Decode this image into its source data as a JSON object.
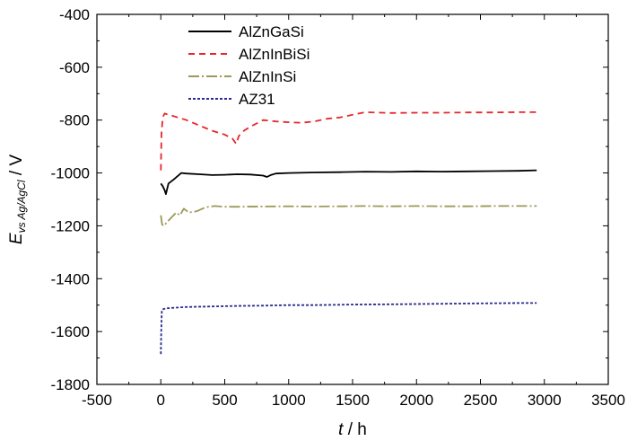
{
  "chart_data": {
    "type": "line",
    "title": "",
    "xlabel": {
      "var": "t",
      "unit": " / h"
    },
    "ylabel": {
      "var": "E",
      "sub": "vs Ag/AgCl",
      "unit": " / V"
    },
    "xlim": [
      -500,
      3500
    ],
    "ylim": [
      -1800,
      -400
    ],
    "xticks": [
      -500,
      0,
      500,
      1000,
      1500,
      2000,
      2500,
      3000,
      3500
    ],
    "yticks": [
      -400,
      -600,
      -800,
      -1000,
      -1200,
      -1400,
      -1600,
      -1800
    ],
    "legend_position": "top-center",
    "series": [
      {
        "name": "AlZnGaSi",
        "color": "#000000",
        "dash": "",
        "x": [
          0,
          15,
          30,
          40,
          60,
          100,
          160,
          200,
          300,
          400,
          500,
          600,
          700,
          800,
          830,
          860,
          900,
          1000,
          1200,
          1400,
          1600,
          1800,
          2000,
          2200,
          2400,
          2600,
          2800,
          2940
        ],
        "y": [
          -1040,
          -1050,
          -1065,
          -1080,
          -1040,
          -1025,
          -1000,
          -1002,
          -1005,
          -1008,
          -1007,
          -1005,
          -1006,
          -1010,
          -1015,
          -1008,
          -1002,
          -1000,
          -998,
          -997,
          -995,
          -996,
          -994,
          -995,
          -994,
          -993,
          -992,
          -990
        ]
      },
      {
        "name": "AlZnInBiSi",
        "color": "#e8262b",
        "dash": "7,5",
        "x": [
          0,
          5,
          15,
          30,
          60,
          100,
          200,
          300,
          400,
          500,
          560,
          590,
          610,
          650,
          700,
          800,
          900,
          1000,
          1100,
          1200,
          1300,
          1400,
          1500,
          1600,
          1800,
          2000,
          2200,
          2400,
          2600,
          2800,
          2940
        ],
        "y": [
          -990,
          -850,
          -790,
          -775,
          -780,
          -785,
          -800,
          -820,
          -840,
          -855,
          -870,
          -890,
          -860,
          -840,
          -825,
          -800,
          -805,
          -808,
          -810,
          -805,
          -795,
          -790,
          -780,
          -770,
          -773,
          -772,
          -772,
          -771,
          -771,
          -770,
          -770
        ]
      },
      {
        "name": "AlZnInSi",
        "color": "#9a9a5a",
        "dash": "12,3,2,3",
        "x": [
          0,
          10,
          25,
          50,
          80,
          120,
          150,
          180,
          220,
          280,
          350,
          420,
          500,
          600,
          800,
          1000,
          1200,
          1400,
          1600,
          1800,
          2000,
          2200,
          2400,
          2600,
          2800,
          2940
        ],
        "y": [
          -1160,
          -1195,
          -1200,
          -1185,
          -1170,
          -1150,
          -1160,
          -1135,
          -1150,
          -1145,
          -1130,
          -1125,
          -1128,
          -1128,
          -1127,
          -1126,
          -1127,
          -1126,
          -1125,
          -1126,
          -1125,
          -1126,
          -1126,
          -1125,
          -1125,
          -1125
        ]
      },
      {
        "name": "AZ31",
        "color": "#2b2b8c",
        "dash": "3,2",
        "x": [
          0,
          3,
          8,
          20,
          50,
          100,
          200,
          400,
          600,
          800,
          1000,
          1200,
          1500,
          1800,
          2000,
          2400,
          2800,
          2940
        ],
        "y": [
          -1685,
          -1600,
          -1520,
          -1515,
          -1512,
          -1510,
          -1507,
          -1505,
          -1503,
          -1502,
          -1500,
          -1500,
          -1498,
          -1497,
          -1496,
          -1494,
          -1492,
          -1492
        ]
      }
    ]
  }
}
